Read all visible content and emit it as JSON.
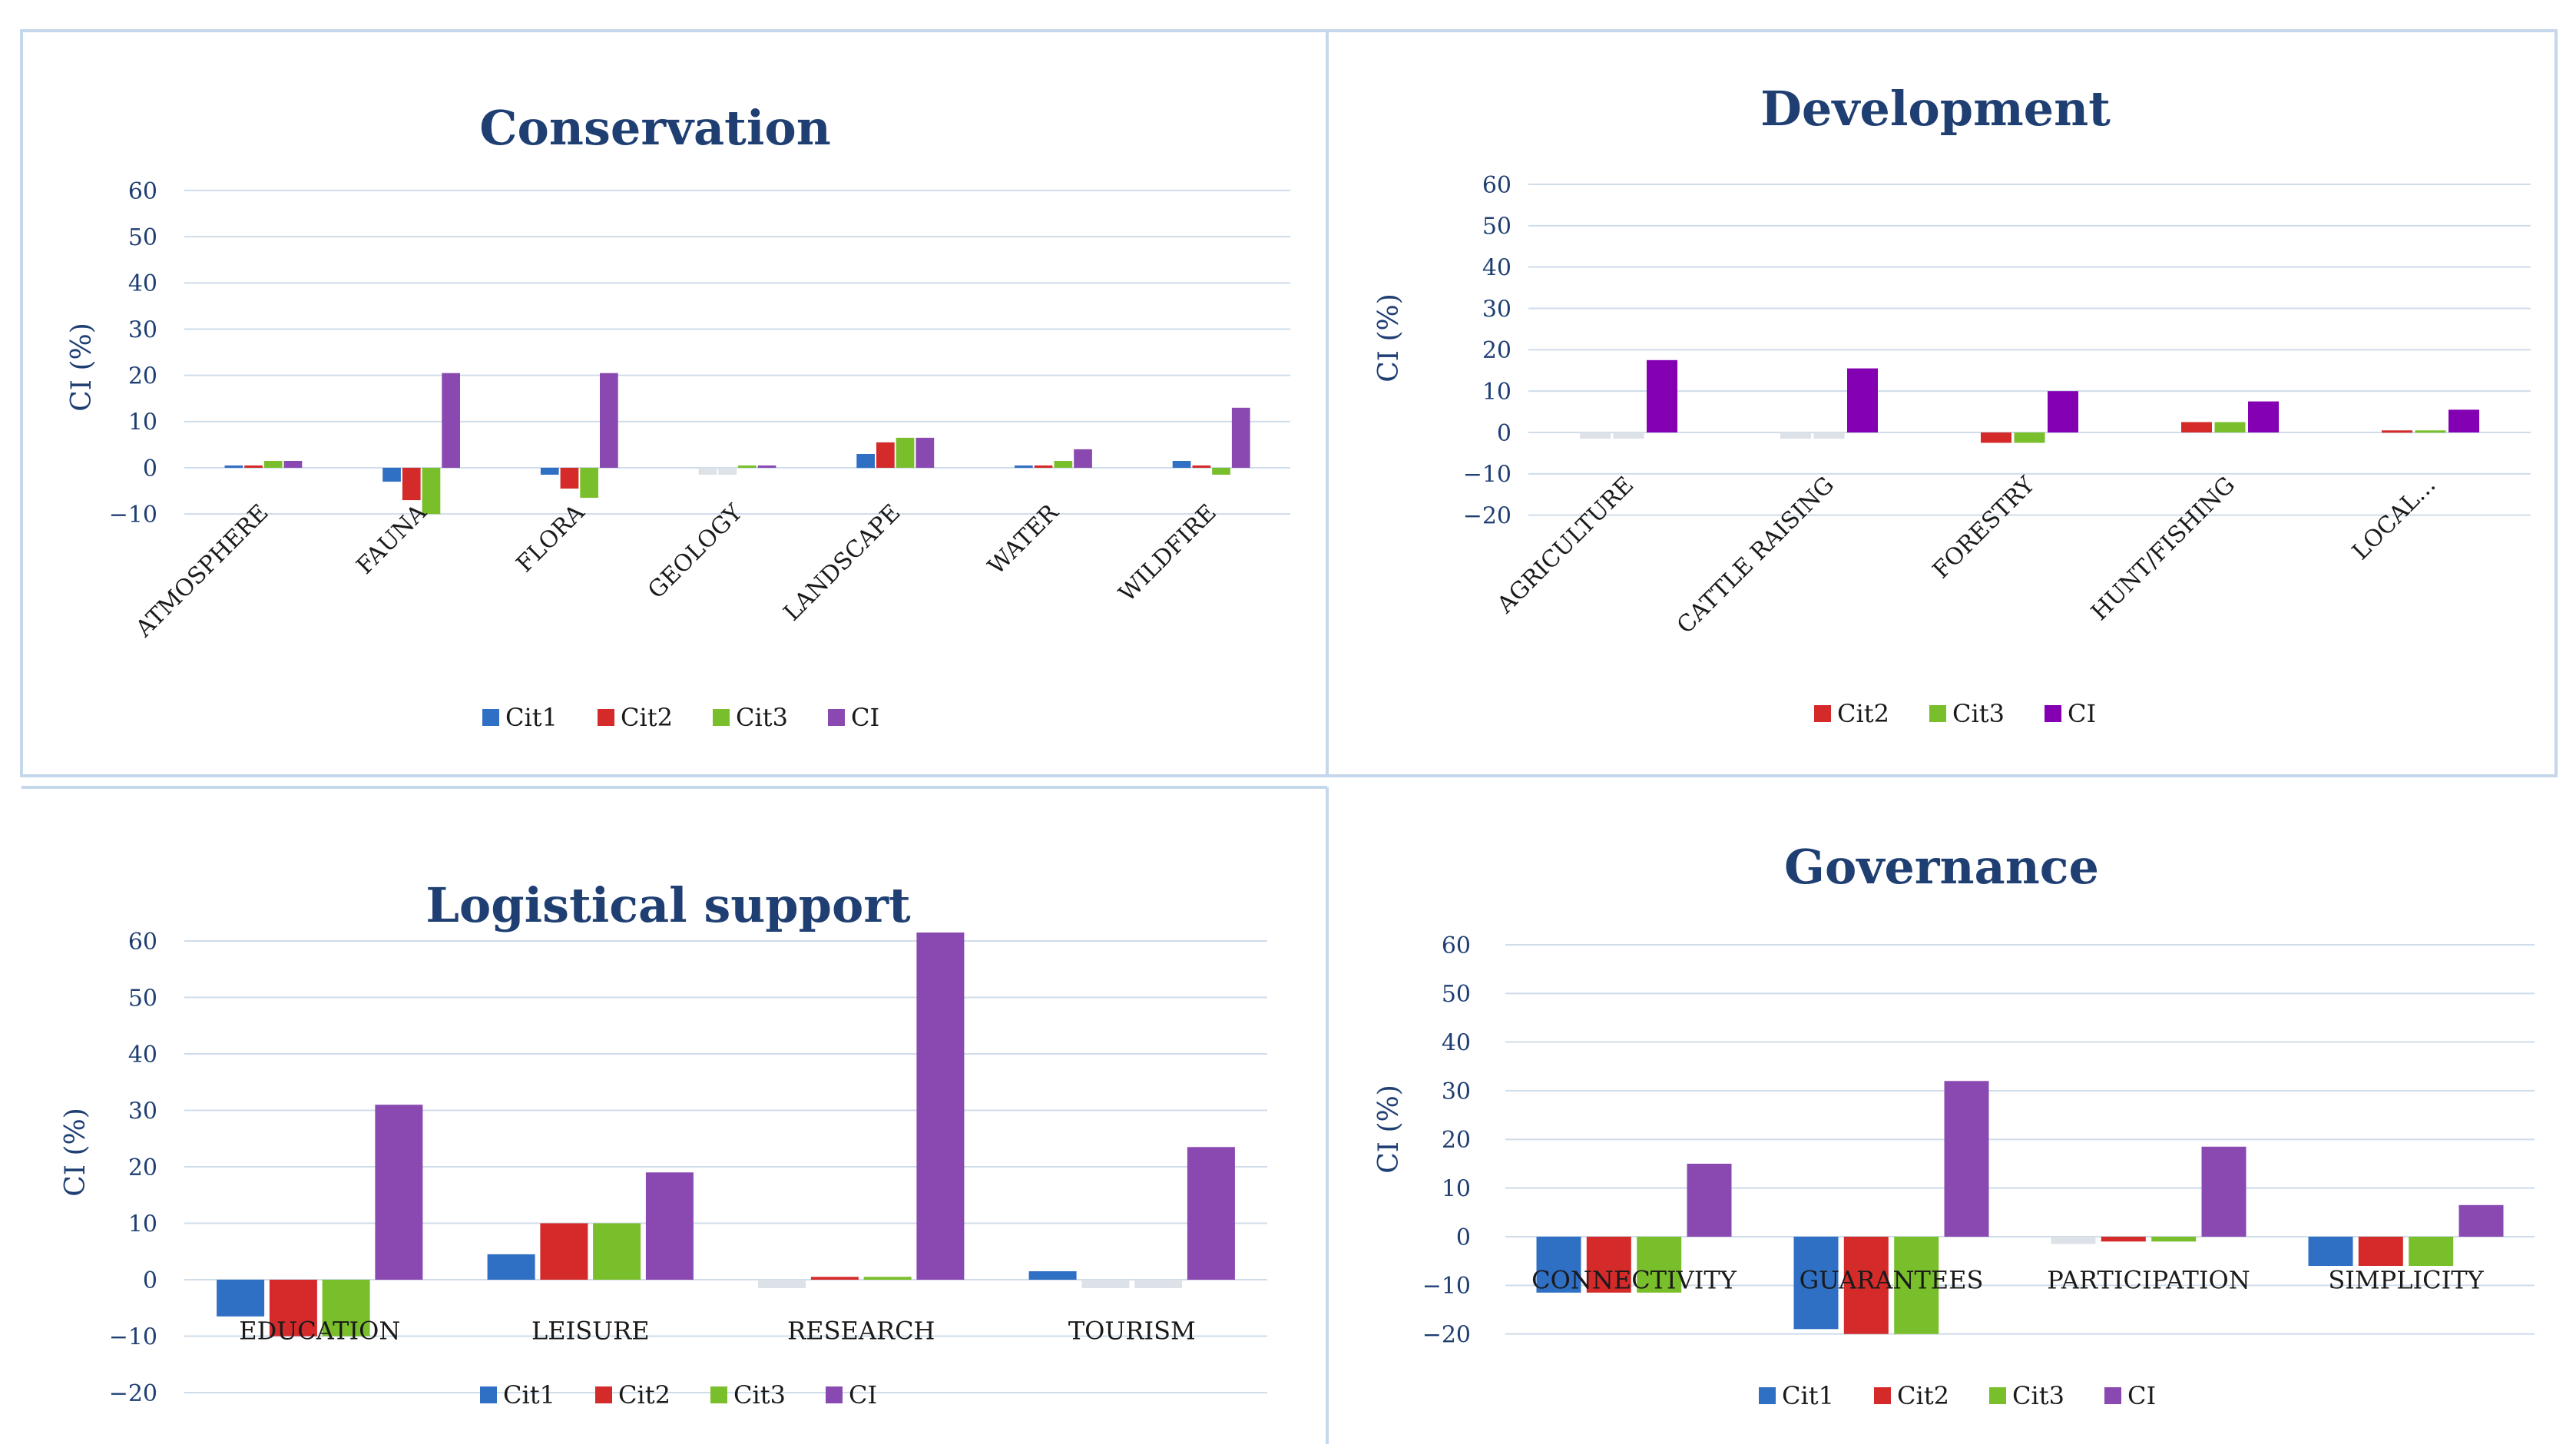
{
  "colors": {
    "Cit1": "#2f6fc4",
    "Cit2": "#d42a2a",
    "Cit3": "#79bf2b",
    "CI": "#8a49b0",
    "CI_dev": "#8300b3",
    "neutral": "#dde1e8",
    "title": "#1f3f73",
    "axis_text": "#1f3f73",
    "grid": "#cfdcea",
    "border": "#c5d7ea"
  },
  "chart_data": [
    {
      "id": "conservation",
      "type": "bar",
      "title": "Conservation",
      "ylabel": "CI (%)",
      "ylim": [
        -10,
        60
      ],
      "yticks": [
        "60",
        "50",
        "40",
        "30",
        "20",
        "10",
        "0",
        "−10"
      ],
      "label_style": "rotated",
      "categories": [
        "ATMOSPHERE",
        "FAUNA",
        "FLORA",
        "GEOLOGY",
        "LANDSCAPE",
        "WATER",
        "WILDFIRE"
      ],
      "series": [
        {
          "name": "Cit1",
          "values": [
            0.5,
            -3,
            -1.5,
            -1.5,
            3,
            0.5,
            1.5
          ]
        },
        {
          "name": "Cit2",
          "values": [
            0.5,
            -7,
            -4.5,
            -1.5,
            5.5,
            0.5,
            0.5
          ]
        },
        {
          "name": "Cit3",
          "values": [
            1.5,
            -10,
            -6.5,
            0.5,
            6.5,
            1.5,
            -1.5
          ]
        },
        {
          "name": "CI",
          "values": [
            1.5,
            20.5,
            20.5,
            0.5,
            6.5,
            4,
            13
          ]
        }
      ],
      "legend": [
        "Cit1",
        "Cit2",
        "Cit3",
        "CI"
      ]
    },
    {
      "id": "development",
      "type": "bar",
      "title": "Development",
      "ylabel": "CI (%)",
      "ylim": [
        -20,
        60
      ],
      "yticks": [
        "60",
        "50",
        "40",
        "30",
        "20",
        "10",
        "0",
        "−10",
        "−20"
      ],
      "label_style": "rotated",
      "categories": [
        "AGRICULTURE",
        "CATTLE RAISING",
        "FORESTRY",
        "HUNT/FISHING",
        "LOCAL..."
      ],
      "series": [
        {
          "name": "Cit2",
          "values": [
            -1.5,
            -1.5,
            -2.5,
            2.5,
            0.5
          ]
        },
        {
          "name": "Cit3",
          "values": [
            -1.5,
            -1.5,
            -2.5,
            2.5,
            0.5
          ]
        },
        {
          "name": "CI",
          "values": [
            17.5,
            15.5,
            10,
            7.5,
            5.5
          ]
        }
      ],
      "legend": [
        "Cit2",
        "Cit3",
        "CI"
      ]
    },
    {
      "id": "logistical",
      "type": "bar",
      "title": "Logistical support",
      "ylabel": "CI (%)",
      "ylim": [
        -20,
        60
      ],
      "yticks": [
        "60",
        "50",
        "40",
        "30",
        "20",
        "10",
        "0",
        "−10",
        "−20"
      ],
      "label_style": "zero",
      "categories": [
        "EDUCATION",
        "LEISURE",
        "RESEARCH",
        "TOURISM"
      ],
      "series": [
        {
          "name": "Cit1",
          "values": [
            -6.5,
            4.5,
            -1.5,
            1.5
          ]
        },
        {
          "name": "Cit2",
          "values": [
            -10,
            10,
            0.5,
            -1.5
          ]
        },
        {
          "name": "Cit3",
          "values": [
            -10,
            10,
            0.5,
            -1.5
          ]
        },
        {
          "name": "CI",
          "values": [
            31,
            19,
            61.5,
            23.5
          ]
        }
      ],
      "legend": [
        "Cit1",
        "Cit2",
        "Cit3",
        "CI"
      ]
    },
    {
      "id": "governance",
      "type": "bar",
      "title": "Governance",
      "ylabel": "CI (%)",
      "ylim": [
        -20,
        60
      ],
      "yticks": [
        "60",
        "50",
        "40",
        "30",
        "20",
        "10",
        "0",
        "−10",
        "−20"
      ],
      "label_style": "zero",
      "categories": [
        "CONNECTIVITY",
        "GUARANTEES",
        "PARTICIPATION",
        "SIMPLICITY"
      ],
      "series": [
        {
          "name": "Cit1",
          "values": [
            -11.5,
            -19,
            -1.5,
            -6
          ]
        },
        {
          "name": "Cit2",
          "values": [
            -11.5,
            -20,
            -1,
            -6
          ]
        },
        {
          "name": "Cit3",
          "values": [
            -11.5,
            -20,
            -1,
            -6
          ]
        },
        {
          "name": "CI",
          "values": [
            15,
            32,
            18.5,
            6.5
          ]
        }
      ],
      "legend": [
        "Cit1",
        "Cit2",
        "Cit3",
        "CI"
      ]
    }
  ]
}
